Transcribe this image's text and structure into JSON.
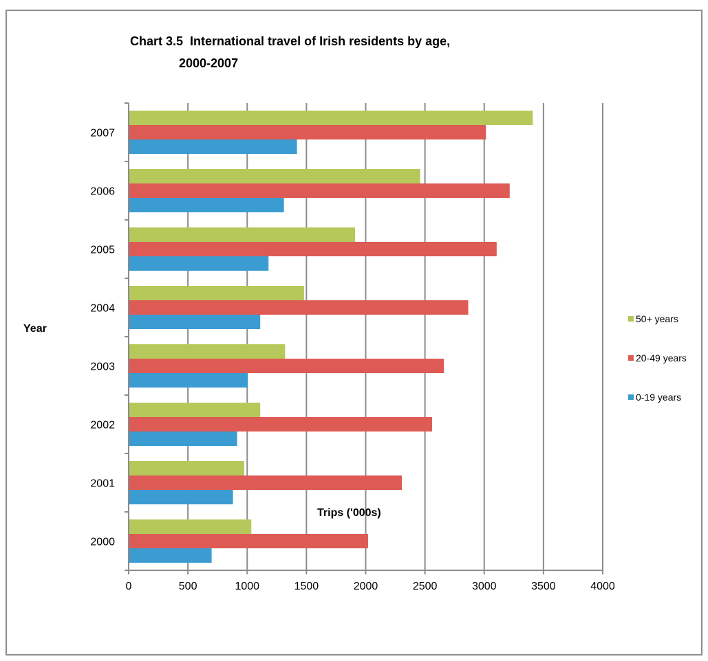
{
  "chart_data": {
    "type": "bar",
    "orientation": "horizontal",
    "title_line1": "Chart 3.5  International travel of Irish residents by age,",
    "title_line2": "2000-2007",
    "xlabel": "Trips ('000s)",
    "ylabel": "Year",
    "categories": [
      "2000",
      "2001",
      "2002",
      "2003",
      "2004",
      "2005",
      "2006",
      "2007"
    ],
    "xlim": [
      0,
      4000
    ],
    "x_ticks": [
      "0",
      "500",
      "1000",
      "1500",
      "2000",
      "2500",
      "3000",
      "3500",
      "4000"
    ],
    "grid": "vertical",
    "legend_position": "right",
    "series": [
      {
        "name": "0-19 years",
        "color": "#3b9cd2",
        "values": [
          700,
          880,
          915,
          1005,
          1110,
          1180,
          1310,
          1420
        ]
      },
      {
        "name": "20-49 years",
        "color": "#dd5a55",
        "values": [
          2020,
          2305,
          2560,
          2660,
          2865,
          3105,
          3215,
          3015
        ]
      },
      {
        "name": "50+ years",
        "color": "#b7c85a",
        "values": [
          1035,
          975,
          1110,
          1320,
          1480,
          1910,
          2460,
          3410
        ]
      }
    ],
    "legend_order": [
      "50+ years",
      "20-49 years",
      "0-19 years"
    ]
  }
}
